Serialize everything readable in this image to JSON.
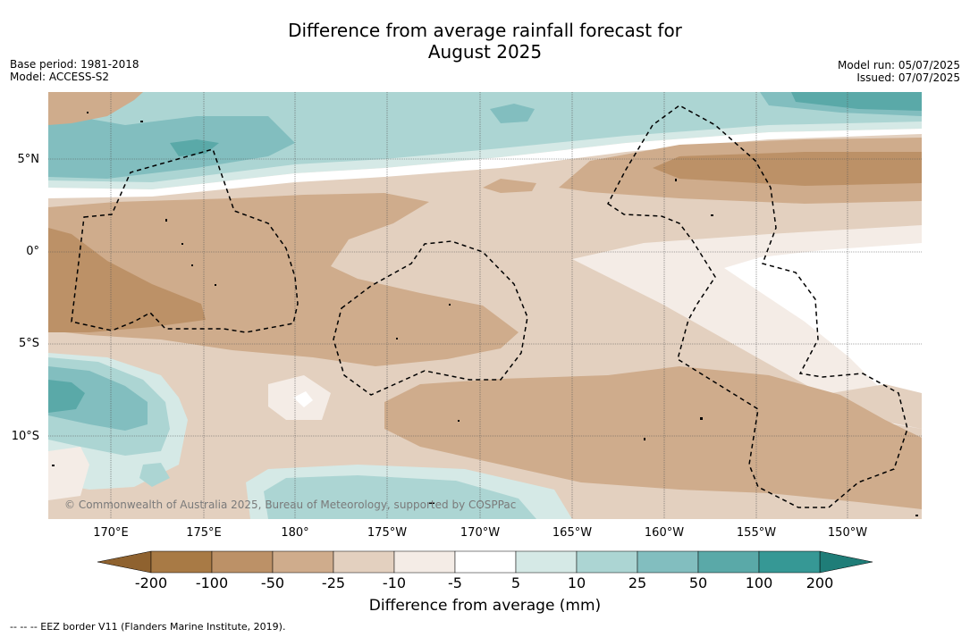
{
  "title": {
    "line1": "Difference from average rainfall forecast for",
    "line2": "August 2025"
  },
  "meta_left": {
    "base_period": "Base period: 1981-2018",
    "model": "Model: ACCESS-S2"
  },
  "meta_right": {
    "model_run": "Model run: 05/07/2025",
    "issued": "Issued: 07/07/2025"
  },
  "lat_ticks": [
    "5°N",
    "0°",
    "5°S",
    "10°S"
  ],
  "lon_ticks": [
    "170°E",
    "175°E",
    "180°",
    "175°W",
    "170°W",
    "165°W",
    "160°W",
    "155°W",
    "150°W"
  ],
  "copyright": "© Commonwealth of Australia 2025, Bureau of Meteorology, supported by COSPPac",
  "colorbar": {
    "labels": [
      "-200",
      "-100",
      "-50",
      "-25",
      "-10",
      "-5",
      "5",
      "10",
      "25",
      "50",
      "100",
      "200"
    ],
    "colors": [
      "#a87a45",
      "#bc9167",
      "#cfac8c",
      "#e3d0bf",
      "#f4ece6",
      "#ffffff",
      "#d5e9e6",
      "#acd5d3",
      "#82bebf",
      "#5aa9a8",
      "#369895"
    ],
    "end_low_color": "#8f622f",
    "end_high_color": "#1f7d78",
    "title": "Difference from average (mm)"
  },
  "footer": "--  --  -- EEZ border V11 (Flanders Marine Institute, 2019)."
}
